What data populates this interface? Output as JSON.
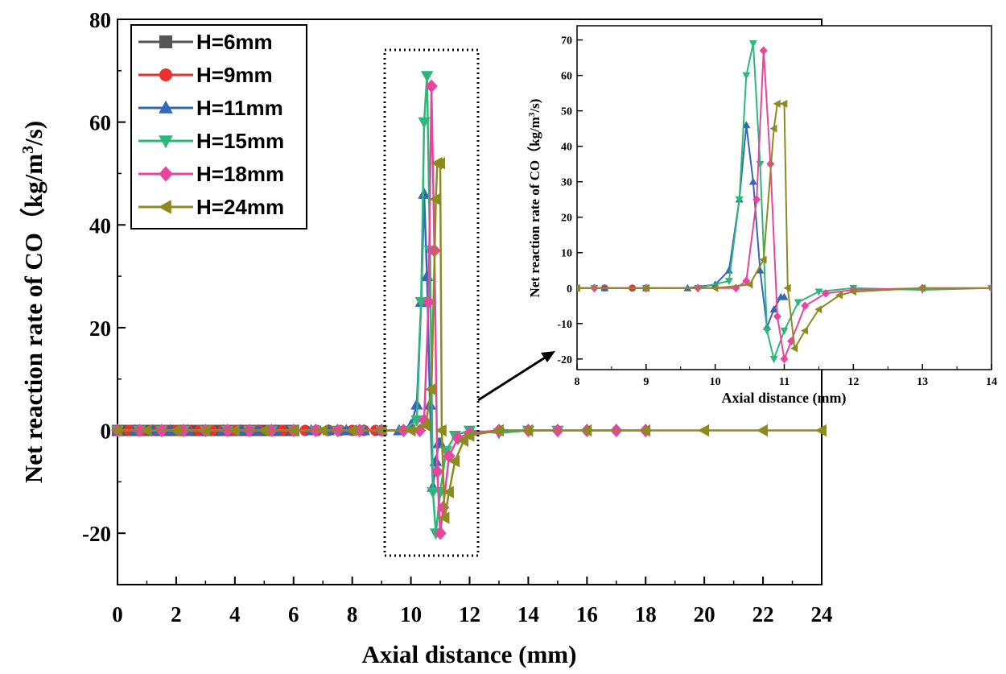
{
  "chart_data": [
    {
      "type": "line",
      "panel": "main",
      "xlabel": "Axial distance (mm)",
      "ylabel": "Net reaction rate of CO（kg/m3/s)",
      "ylabel_parts": {
        "main": "Net reaction rate of CO（kg/m",
        "sup": "3",
        "tail": "/s)"
      },
      "xlim": [
        0,
        24
      ],
      "ylim": [
        -30,
        80
      ],
      "x_ticks": [
        0,
        2,
        4,
        6,
        8,
        10,
        12,
        14,
        16,
        18,
        20,
        22,
        24
      ],
      "y_ticks": [
        -20,
        0,
        20,
        40,
        60,
        80
      ],
      "legend_position": "top-left",
      "series": [
        {
          "name": "H=6mm",
          "color": "#555555",
          "marker": "square",
          "x": [
            0,
            0.3,
            0.6,
            0.9,
            1.2,
            1.5,
            1.8,
            2.1,
            2.4,
            2.7,
            3.0,
            3.3,
            3.6,
            3.9,
            4.2,
            4.5,
            4.8,
            5.1,
            5.4,
            5.7,
            6.0
          ],
          "y": [
            0,
            0,
            0,
            0,
            0,
            0,
            0,
            0,
            0,
            0,
            0,
            0,
            0,
            0,
            0,
            0,
            0,
            0,
            0,
            0,
            0
          ]
        },
        {
          "name": "H=9mm",
          "color": "#e8302f",
          "marker": "circle",
          "x": [
            0,
            0.4,
            0.8,
            1.2,
            1.6,
            2.0,
            2.4,
            2.8,
            3.2,
            3.6,
            4.0,
            4.4,
            4.8,
            5.2,
            5.6,
            6.0,
            6.4,
            6.8,
            7.2,
            7.6,
            8.0,
            8.4,
            8.8,
            9.0
          ],
          "y": [
            0,
            0,
            0,
            0,
            0,
            0,
            0,
            0,
            0,
            0,
            0,
            0,
            0,
            0,
            0,
            0,
            0,
            0,
            0,
            0,
            0,
            0,
            0,
            0
          ]
        },
        {
          "name": "H=11mm",
          "color": "#3566b8",
          "marker": "triangle-up",
          "x": [
            0,
            0.6,
            1.2,
            1.8,
            2.4,
            3.0,
            3.6,
            4.2,
            4.8,
            5.4,
            6.0,
            6.6,
            7.2,
            7.8,
            8.4,
            9.0,
            9.6,
            10.0,
            10.2,
            10.35,
            10.45,
            10.55,
            10.65,
            10.75,
            10.85,
            10.95,
            11.0
          ],
          "y": [
            0,
            0,
            0,
            0,
            0,
            0,
            0,
            0,
            0,
            0,
            0,
            0,
            0,
            0,
            0,
            0,
            0,
            1,
            5,
            25,
            46,
            30,
            5,
            -11,
            -6,
            -2.5,
            -2.5
          ]
        },
        {
          "name": "H=15mm",
          "color": "#2db87a",
          "marker": "triangle-down",
          "x": [
            0,
            0.75,
            1.5,
            2.25,
            3.0,
            3.75,
            4.5,
            5.25,
            6.0,
            6.75,
            7.5,
            8.25,
            9.0,
            9.75,
            10.2,
            10.35,
            10.45,
            10.55,
            10.65,
            10.75,
            10.85,
            11.0,
            11.2,
            11.5,
            12.0,
            13.0,
            14.0,
            15.0
          ],
          "y": [
            0,
            0,
            0,
            0,
            0,
            0,
            0,
            0,
            0,
            0,
            0,
            0,
            0,
            0,
            2,
            25,
            60,
            69,
            35,
            -12,
            -20,
            -12,
            -4,
            -1,
            0,
            -0.5,
            0,
            0
          ]
        },
        {
          "name": "H=18mm",
          "color": "#e8459e",
          "marker": "diamond",
          "x": [
            0,
            0.75,
            1.5,
            2.25,
            3.0,
            3.75,
            4.5,
            5.25,
            6.0,
            6.75,
            7.5,
            8.25,
            9.0,
            9.75,
            10.3,
            10.45,
            10.6,
            10.7,
            10.8,
            10.9,
            11.0,
            11.1,
            11.3,
            11.6,
            12.0,
            13.0,
            14.0,
            15.0,
            16.0,
            17.0,
            18.0
          ],
          "y": [
            0,
            0,
            0,
            0,
            0,
            0,
            0,
            0,
            0,
            0,
            0,
            0,
            0,
            0,
            0,
            2,
            25,
            67,
            35,
            -8,
            -20,
            -15,
            -5,
            -1.5,
            -0.5,
            0,
            0,
            0,
            0,
            0,
            0
          ]
        },
        {
          "name": "H=24mm",
          "color": "#8b8b1f",
          "marker": "triangle-left",
          "x": [
            0,
            1.0,
            2.0,
            3.0,
            4.0,
            5.0,
            6.0,
            7.0,
            8.0,
            9.0,
            10.0,
            10.5,
            10.7,
            10.85,
            10.9,
            11.0,
            11.05,
            11.15,
            11.3,
            11.5,
            11.8,
            12.0,
            13.0,
            14.0,
            16.0,
            18.0,
            20.0,
            22.0,
            24.0
          ],
          "y": [
            0,
            0,
            0,
            0,
            0,
            0,
            0,
            0,
            0,
            0,
            0,
            1,
            8,
            45,
            52,
            52,
            0,
            -17,
            -12,
            -6,
            -2,
            -1,
            0,
            0,
            0,
            0,
            0,
            0,
            0
          ]
        }
      ]
    },
    {
      "type": "line",
      "panel": "inset",
      "xlabel": "Axial distance (mm)",
      "ylabel": "Net reaction rate of CO（kg/m3/s)",
      "ylabel_parts": {
        "main": "Net reaction rate of CO（kg/m",
        "sup": "3",
        "tail": "/s)"
      },
      "xlim": [
        8,
        14
      ],
      "ylim": [
        -23,
        74
      ],
      "x_ticks": [
        8,
        9,
        10,
        11,
        12,
        13,
        14
      ],
      "y_ticks": [
        -20,
        -10,
        0,
        10,
        20,
        30,
        40,
        50,
        60,
        70
      ],
      "note": "zoomed view of region 9–12 mm, same series as main panel"
    }
  ]
}
